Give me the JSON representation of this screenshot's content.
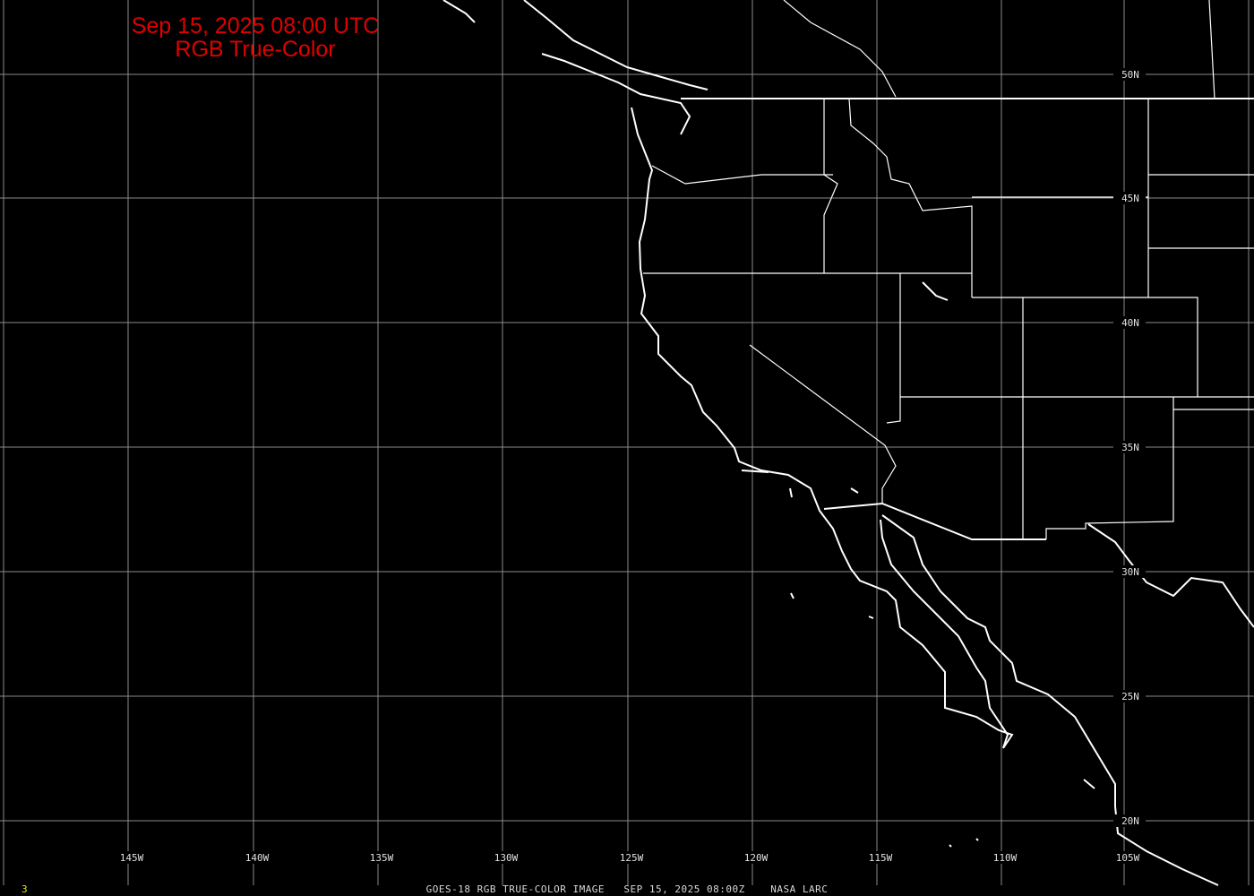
{
  "title": {
    "line1": "Sep 15, 2025 08:00 UTC",
    "line2": "RGB True-Color"
  },
  "footer": {
    "caption": "GOES-18 RGB TRUE-COLOR IMAGE   SEP 15, 2025 08:00Z    NASA LARC",
    "frame_number": "3"
  },
  "colors": {
    "title": "#e00000",
    "grid": "#8a8a8a",
    "coastline": "#ffffff",
    "background": "#000000",
    "frame_number": "#e8e800"
  },
  "longitude_labels": [
    "145W",
    "140W",
    "135W",
    "130W",
    "125W",
    "120W",
    "115W",
    "110W",
    "105W"
  ],
  "latitude_labels": [
    "50N",
    "45N",
    "40N",
    "35N",
    "30N",
    "25N",
    "20N"
  ]
}
